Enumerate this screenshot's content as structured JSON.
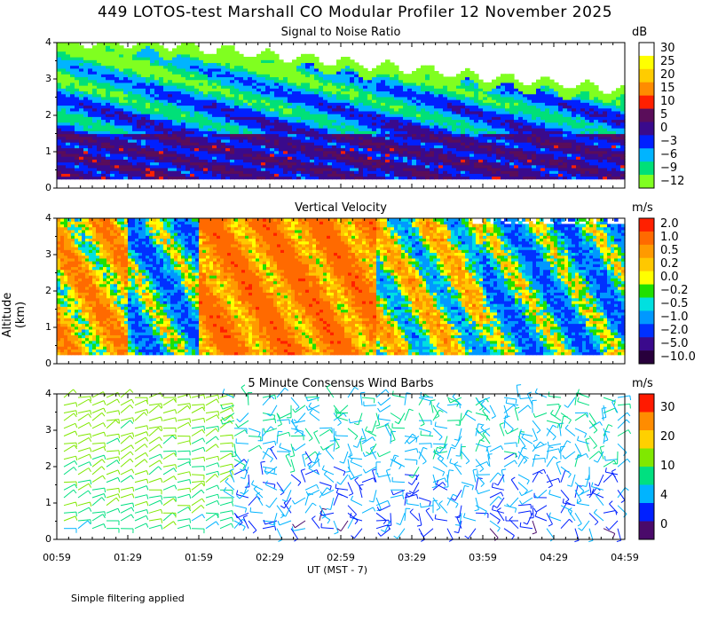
{
  "header": {
    "title": "449 LOTOS-test Marshall CO Modular Profiler 12 November 2025"
  },
  "axes": {
    "y_title": "Altitude (km)",
    "x_title": "UT (MST - 7)",
    "y_ticks": [
      "0",
      "1",
      "2",
      "3",
      "4"
    ],
    "x_ticks": [
      "00:59",
      "01:29",
      "01:59",
      "02:29",
      "02:59",
      "03:29",
      "03:59",
      "04:29",
      "04:59"
    ]
  },
  "footnote": "Simple filtering applied",
  "panels": [
    {
      "title": "Signal to Noise Ratio",
      "units": "dB",
      "colorbar": {
        "labels": [
          "30",
          "25",
          "20",
          "15",
          "10",
          "5",
          "0",
          "−3",
          "−6",
          "−9",
          "−12"
        ],
        "colors": [
          "#ffffff",
          "#ffff00",
          "#ffcc00",
          "#ff8c00",
          "#ff2000",
          "#5a0d5a",
          "#3a0a8c",
          "#0020ff",
          "#00b4ff",
          "#00e078",
          "#80ff20"
        ]
      }
    },
    {
      "title": "Vertical Velocity",
      "units": "m/s",
      "colorbar": {
        "labels": [
          "2.0",
          "1.0",
          "0.5",
          "0.2",
          "0.0",
          "−0.2",
          "−0.5",
          "−1.0",
          "−2.0",
          "−5.0",
          "−10.0"
        ],
        "colors": [
          "#ff2000",
          "#ff6a00",
          "#ff9a00",
          "#ffc800",
          "#ffff00",
          "#20e000",
          "#00e0e0",
          "#0098ff",
          "#0030ff",
          "#3a0a8c",
          "#28003c"
        ]
      }
    },
    {
      "title": "5 Minute Consensus Wind Barbs",
      "units": "m/s",
      "colorbar": {
        "labels": [
          "30",
          "20",
          "10",
          "4",
          "0"
        ],
        "colors": [
          "#ff1a00",
          "#ff8c00",
          "#ffd000",
          "#80e800",
          "#00e080",
          "#00b4ff",
          "#0020ff",
          "#4a0a6a"
        ]
      }
    }
  ],
  "chart_data": {
    "type": "heatmap",
    "time_range_ut": [
      "00:59",
      "04:59"
    ],
    "altitude_range_km": [
      0,
      4
    ],
    "panels": [
      {
        "name": "Signal to Noise Ratio",
        "units": "dB",
        "color_levels": [
          30,
          25,
          20,
          15,
          10,
          5,
          0,
          -3,
          -6,
          -9,
          -12
        ],
        "data_altitude_range_km": [
          0.25,
          4.0
        ],
        "layers_km": {
          "strong_low_level_dB": "0 to 10 below ~1.5 km",
          "mid_level_dB": "-3 to -12 between 1.5 and 3 km",
          "upper_edge_km_start": 4.0,
          "upper_edge_km_end": 2.7
        }
      },
      {
        "name": "Vertical Velocity",
        "units": "m/s",
        "color_levels": [
          2.0,
          1.0,
          0.5,
          0.2,
          0.0,
          -0.2,
          -0.5,
          -1.0,
          -2.0,
          -5.0,
          -10.0
        ],
        "data_altitude_range_km": [
          0.25,
          4.0
        ],
        "segments": [
          {
            "time": [
              "00:59",
              "01:29"
            ],
            "dominant_m_s": 0.5
          },
          {
            "time": [
              "01:29",
              "01:59"
            ],
            "dominant_m_s": -0.5
          },
          {
            "time": [
              "01:59",
              "03:14"
            ],
            "dominant_m_s": 1.0
          },
          {
            "time": [
              "03:14",
              "03:59"
            ],
            "dominant_m_s": 0.0
          },
          {
            "time": [
              "03:59",
              "04:59"
            ],
            "dominant_m_s": -0.5
          }
        ]
      },
      {
        "name": "5 Minute Consensus Wind Barbs",
        "units": "m/s",
        "color_levels": [
          30,
          20,
          10,
          4,
          0
        ],
        "data_altitude_range_km": [
          0.2,
          4.0
        ],
        "segments": [
          {
            "time": [
              "00:59",
              "02:14"
            ],
            "dominant_speed_m_s": 8
          },
          {
            "time": [
              "02:14",
              "04:59"
            ],
            "dominant_speed_m_s": 3
          }
        ]
      }
    ]
  }
}
